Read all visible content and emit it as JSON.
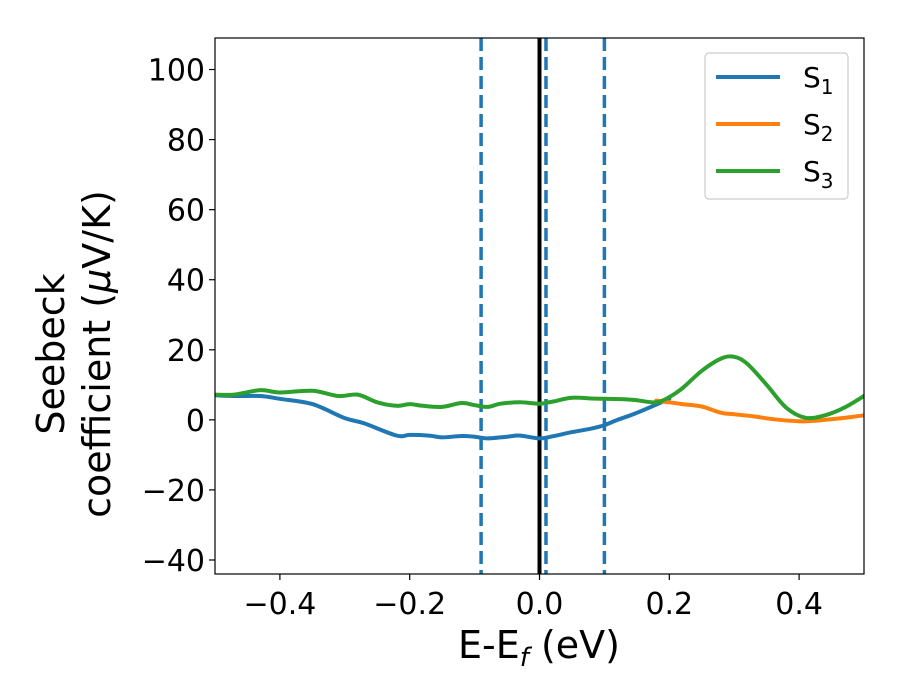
{
  "chart_data": {
    "type": "line",
    "title": "",
    "xlabel": {
      "main": "E-E",
      "sub": "f",
      "unit": " (eV)"
    },
    "ylabel": {
      "line1": "Seebeck",
      "line2": "coefficient  (",
      "mu": "μ",
      "unit": "V/K)"
    },
    "xlim": [
      -0.5,
      0.5
    ],
    "ylim": [
      -44,
      109
    ],
    "xticks": [
      -0.4,
      -0.2,
      0.0,
      0.2,
      0.4
    ],
    "xtick_labels": [
      "−0.4",
      "−0.2",
      "0.0",
      "0.2",
      "0.4"
    ],
    "yticks": [
      -40,
      -20,
      0,
      20,
      40,
      60,
      80,
      100
    ],
    "ytick_labels": [
      "−40",
      "−20",
      "0",
      "20",
      "40",
      "60",
      "80",
      "100"
    ],
    "grid": false,
    "legend_position": "top-right",
    "colors": {
      "S1": "#1f77b4",
      "S2": "#ff7f0e",
      "S3": "#2ca02c",
      "fermi": "#000000"
    },
    "vlines": [
      {
        "x": 0.0,
        "style": "solid",
        "color": "#000000"
      },
      {
        "x": -0.09,
        "style": "dashed",
        "color": "#1f77b4"
      },
      {
        "x": 0.01,
        "style": "dashed",
        "color": "#1f77b4"
      },
      {
        "x": 0.1,
        "style": "dashed",
        "color": "#1f77b4"
      }
    ],
    "series": [
      {
        "name": "S",
        "subscript": "1",
        "color": "#1f77b4",
        "x": [
          -0.5,
          -0.47,
          -0.43,
          -0.4,
          -0.35,
          -0.3,
          -0.27,
          -0.22,
          -0.2,
          -0.17,
          -0.15,
          -0.12,
          -0.1,
          -0.08,
          -0.05,
          -0.03,
          0.0,
          0.02,
          0.05,
          0.08,
          0.1,
          0.12,
          0.15,
          0.2
        ],
        "y": [
          7,
          6.8,
          6.8,
          6,
          4.5,
          0.5,
          -1,
          -4.5,
          -4.3,
          -4.5,
          -5,
          -4.6,
          -4.8,
          -5.3,
          -4.8,
          -4.5,
          -5.3,
          -4.7,
          -3.5,
          -2.5,
          -1.5,
          0,
          2,
          6
        ]
      },
      {
        "name": "S",
        "subscript": "2",
        "color": "#ff7f0e",
        "x": [
          0.18,
          0.2,
          0.22,
          0.25,
          0.28,
          0.3,
          0.33,
          0.36,
          0.4,
          0.42,
          0.45,
          0.48,
          0.5
        ],
        "y": [
          5.5,
          5,
          4.5,
          3.8,
          2,
          1.6,
          1,
          0.2,
          -0.4,
          -0.3,
          0.2,
          0.8,
          1.3
        ]
      },
      {
        "name": "S",
        "subscript": "3",
        "color": "#2ca02c",
        "x": [
          -0.5,
          -0.47,
          -0.43,
          -0.4,
          -0.35,
          -0.31,
          -0.28,
          -0.25,
          -0.22,
          -0.2,
          -0.18,
          -0.15,
          -0.12,
          -0.1,
          -0.08,
          -0.06,
          -0.03,
          0.0,
          0.02,
          0.05,
          0.08,
          0.1,
          0.13,
          0.15,
          0.18,
          0.2,
          0.22,
          0.25,
          0.28,
          0.3,
          0.32,
          0.35,
          0.38,
          0.41,
          0.44,
          0.47,
          0.5
        ],
        "y": [
          7.2,
          7.2,
          8.5,
          7.8,
          8.3,
          6.8,
          7.2,
          5,
          4,
          4.5,
          4,
          3.7,
          4.8,
          4.2,
          3.7,
          4.6,
          5,
          4.6,
          5.2,
          6.3,
          6.1,
          6,
          5.9,
          5.6,
          5,
          6.5,
          9,
          14,
          17.5,
          18,
          16,
          10,
          3.5,
          0.6,
          1.3,
          3.5,
          6.8
        ]
      }
    ]
  }
}
